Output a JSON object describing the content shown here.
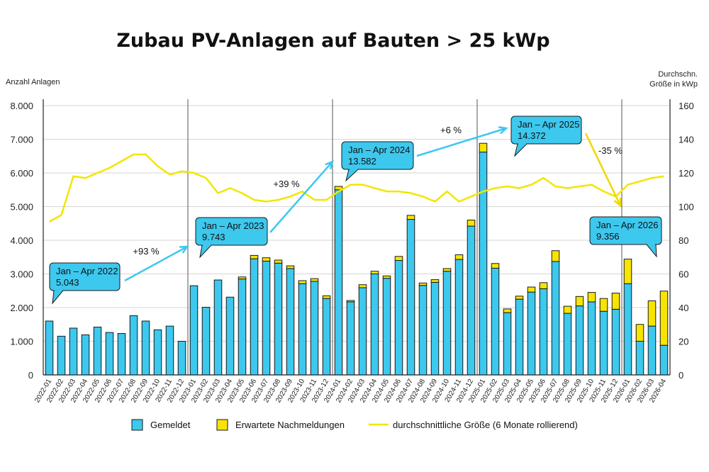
{
  "chart_data": {
    "type": "bar",
    "stacked": true,
    "title": "Zubau PV-Anlagen auf Bauten > 25 kWp",
    "ylabel": "Anzahl Anlagen",
    "y2label_line1": "Durchschn.",
    "y2label_line2": "Größe in kWp",
    "ylim": [
      0,
      8000
    ],
    "y2lim": [
      0,
      160
    ],
    "yticks": [
      "0",
      "1.000",
      "2.000",
      "3.000",
      "4.000",
      "5.000",
      "6.000",
      "7.000",
      "8.000"
    ],
    "y2ticks": [
      "0",
      "20",
      "40",
      "60",
      "80",
      "100",
      "120",
      "140",
      "160"
    ],
    "grid": true,
    "legend_position": "bottom",
    "categories": [
      "2022-01",
      "2022-02",
      "2022-03",
      "2022-04",
      "2022-05",
      "2022-06",
      "2022-07",
      "2022-08",
      "2022-09",
      "2022-10",
      "2022-11",
      "2022-12",
      "2023-01",
      "2023-02",
      "2023-03",
      "2023-04",
      "2023-05",
      "2023-06",
      "2023-07",
      "2023-08",
      "2023-09",
      "2023-10",
      "2023-11",
      "2023-12",
      "2024-01",
      "2024-02",
      "2024-03",
      "2024-04",
      "2024-05",
      "2024-06",
      "2024-07",
      "2024-08",
      "2024-09",
      "2024-10",
      "2024-11",
      "2024-12",
      "2025-01",
      "2025-02",
      "2025-03",
      "2025-04",
      "2025-05",
      "2025-06",
      "2025-07",
      "2025-08",
      "2025-09",
      "2025-10",
      "2025-11",
      "2025-12",
      "2026-01",
      "2026-02",
      "2026-03",
      "2026-04"
    ],
    "series": [
      {
        "name": "Gemeldet",
        "type": "bar",
        "color": "#3dc8ee",
        "values": [
          1600,
          1150,
          1390,
          1190,
          1420,
          1260,
          1230,
          1760,
          1600,
          1340,
          1450,
          1000,
          2650,
          2010,
          2820,
          2310,
          2850,
          3450,
          3380,
          3320,
          3160,
          2710,
          2780,
          2270,
          5500,
          2170,
          2590,
          3000,
          2870,
          3400,
          4620,
          2660,
          2750,
          3080,
          3430,
          4420,
          6620,
          3170,
          1850,
          2250,
          2460,
          2560,
          3370,
          1830,
          2050,
          2170,
          1890,
          1950,
          2710,
          1000,
          1450,
          880
        ]
      },
      {
        "name": "Erwartete Nachmeldungen",
        "type": "bar",
        "color": "#f7e400",
        "values": [
          0,
          0,
          0,
          0,
          0,
          0,
          0,
          0,
          0,
          0,
          0,
          0,
          0,
          0,
          0,
          0,
          60,
          100,
          100,
          90,
          80,
          90,
          80,
          80,
          100,
          40,
          90,
          80,
          70,
          120,
          120,
          70,
          80,
          80,
          140,
          180,
          260,
          140,
          110,
          90,
          150,
          180,
          320,
          210,
          280,
          280,
          380,
          480,
          730,
          500,
          750,
          1610
        ]
      },
      {
        "name": "durchschnittliche Größe (6 Monate rollierend)",
        "type": "line",
        "color": "#f2e600",
        "axis": "right",
        "values": [
          91,
          95,
          118,
          117,
          120,
          123,
          127,
          131,
          131,
          124,
          119,
          121,
          120,
          117,
          108,
          111,
          108,
          104,
          103,
          104,
          106,
          109,
          104,
          104,
          109,
          113,
          113,
          111,
          109,
          109,
          108,
          106,
          103,
          109,
          103,
          106,
          109,
          111,
          112,
          111,
          113,
          117,
          112,
          111,
          112,
          113,
          109,
          106,
          113,
          115,
          117,
          118
        ]
      }
    ],
    "dividers_after": [
      "2022-12",
      "2023-12",
      "2024-12",
      "2025-12"
    ],
    "callouts": [
      {
        "line1": "Jan – Apr 2022",
        "line2": "5.043"
      },
      {
        "line1": "Jan – Apr 2023",
        "line2": "9.743"
      },
      {
        "line1": "Jan – Apr 2024",
        "line2": "13.582"
      },
      {
        "line1": "Jan – Apr 2025",
        "line2": "14.372"
      },
      {
        "line1": "Jan – Apr 2026",
        "line2": "9.356"
      }
    ],
    "growth_labels": [
      {
        "text": "+93 %",
        "color": "#3dc8ee"
      },
      {
        "text": "+39 %",
        "color": "#3dc8ee"
      },
      {
        "text": "+6 %",
        "color": "#3dc8ee"
      },
      {
        "text": "-35 %",
        "color": "#f2d600"
      }
    ]
  }
}
